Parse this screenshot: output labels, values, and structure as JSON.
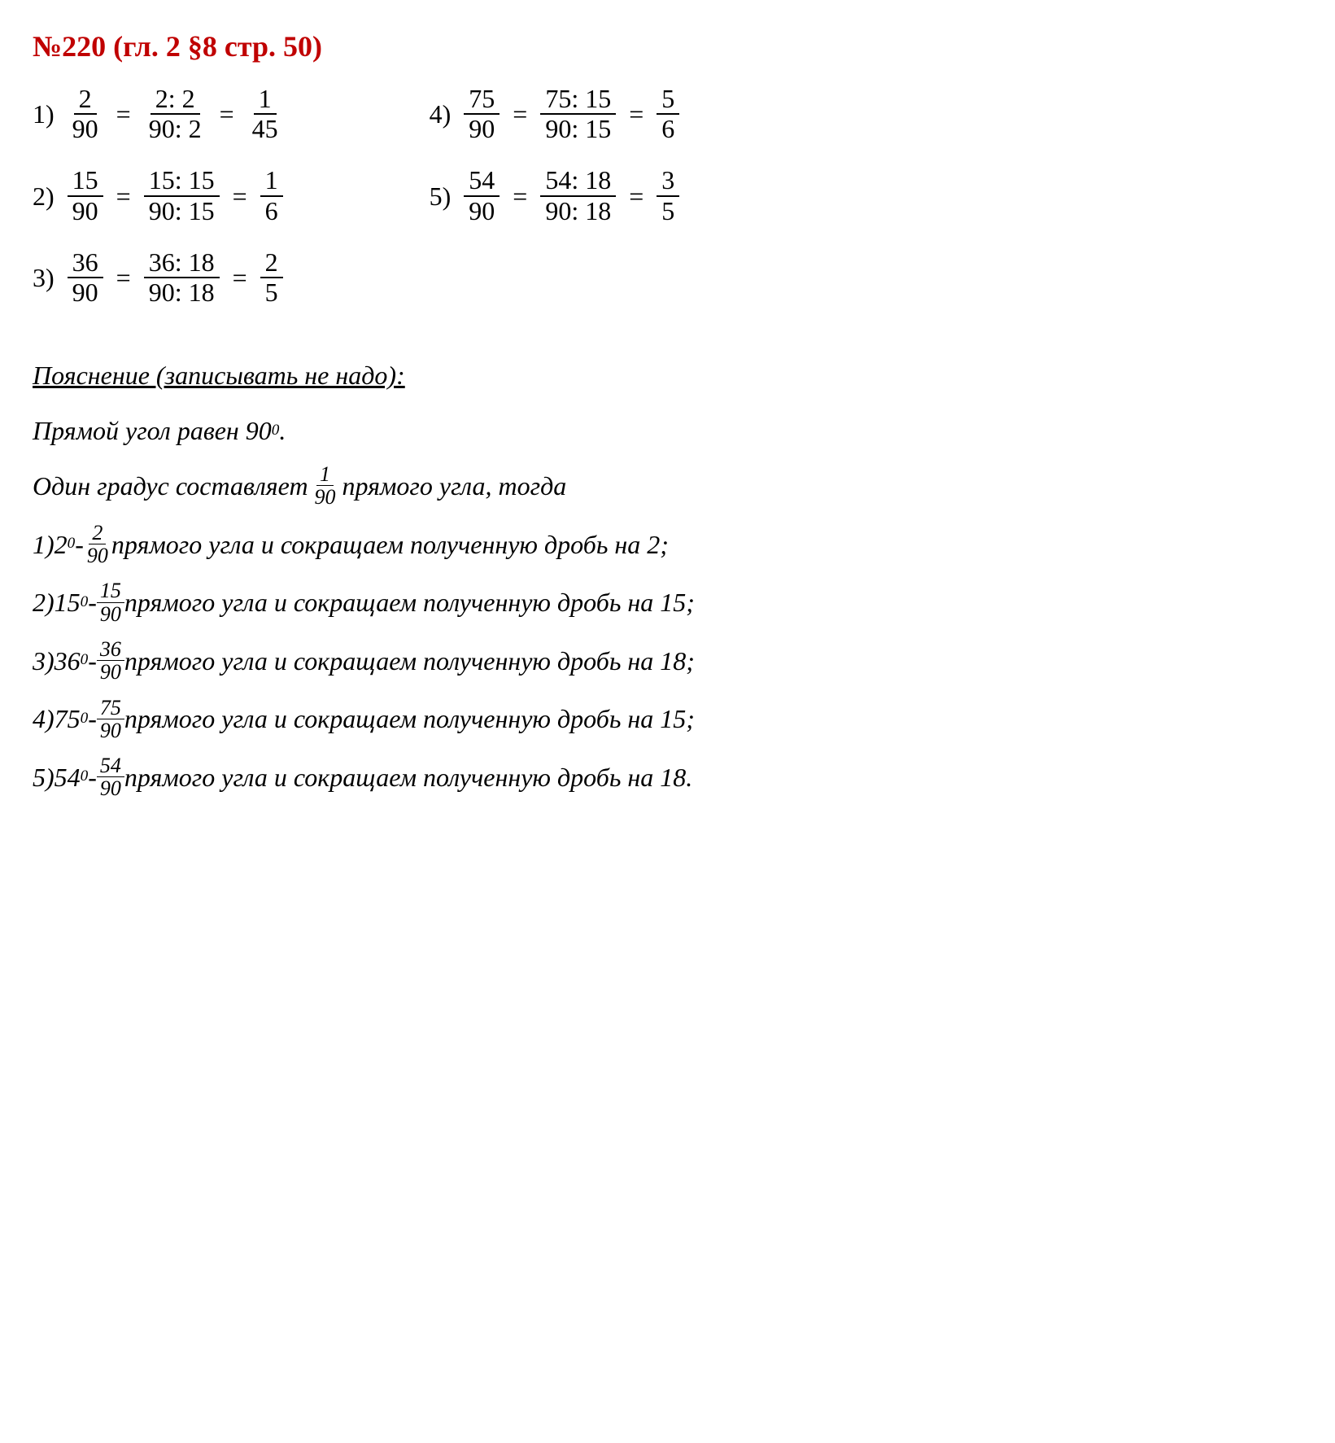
{
  "heading": "№220 (гл. 2 §8 стр. 50)",
  "colors": {
    "heading": "#c00000",
    "text": "#000000",
    "background": "#ffffff"
  },
  "typography": {
    "body_family": "Times New Roman",
    "body_size_pt": 24,
    "heading_size_pt": 27,
    "small_frac_size_pt": 20
  },
  "equations_left": [
    {
      "label": "1)",
      "step1_num": "2",
      "step1_den": "90",
      "step2_num": "2: 2",
      "step2_den": "90: 2",
      "step3_num": "1",
      "step3_den": "45"
    },
    {
      "label": "2)",
      "step1_num": "15",
      "step1_den": "90",
      "step2_num": "15: 15",
      "step2_den": "90: 15",
      "step3_num": "1",
      "step3_den": "6"
    },
    {
      "label": "3)",
      "step1_num": "36",
      "step1_den": "90",
      "step2_num": "36: 18",
      "step2_den": "90: 18",
      "step3_num": "2",
      "step3_den": "5"
    }
  ],
  "equations_right": [
    {
      "label": "4)",
      "step1_num": "75",
      "step1_den": "90",
      "step2_num": "75: 15",
      "step2_den": "90: 15",
      "step3_num": "5",
      "step3_den": "6"
    },
    {
      "label": "5)",
      "step1_num": "54",
      "step1_den": "90",
      "step2_num": "54: 18",
      "step2_den": "90: 18",
      "step3_num": "3",
      "step3_den": "5"
    }
  ],
  "equals_sign": "=",
  "explanation": {
    "header": "Пояснение (записывать не надо):",
    "line_right_angle": "Прямой угол равен 90",
    "degree_symbol": "0",
    "period": ".",
    "one_degree_a": "Один градус составляет ",
    "one_degree_frac_num": "1",
    "one_degree_frac_den": "90",
    "one_degree_b": " прямого угла, тогда",
    "items": [
      {
        "label": "1)",
        "deg": "2",
        "num": "2",
        "den": "90",
        "tail": " прямого угла и сокращаем полученную дробь на 2;"
      },
      {
        "label": "2)",
        "deg": "15",
        "num": "15",
        "den": "90",
        "tail": " прямого угла и сокращаем полученную дробь на 15;"
      },
      {
        "label": "3)",
        "deg": "36",
        "num": "36",
        "den": "90",
        "tail": " прямого угла и сокращаем полученную дробь на 18;"
      },
      {
        "label": "4)",
        "deg": "75",
        "num": "75",
        "den": "90",
        "tail": " прямого угла и сокращаем полученную дробь на 15;"
      },
      {
        "label": "5)",
        "deg": "54",
        "num": "54",
        "den": "90",
        "tail": " прямого угла и сокращаем полученную дробь на 18."
      }
    ],
    "dash": " - "
  }
}
